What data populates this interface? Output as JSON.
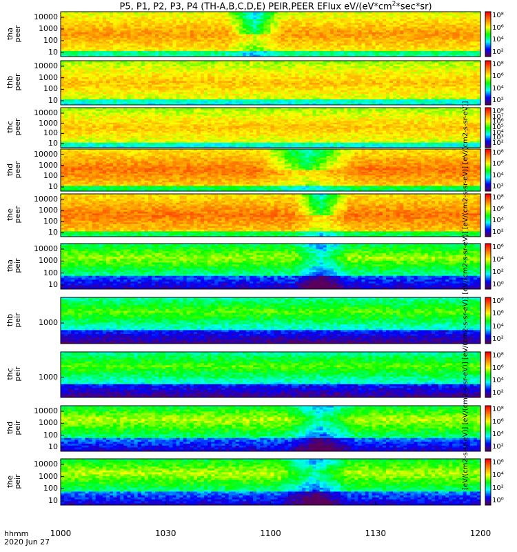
{
  "figure": {
    "title_main": "P5, P1, P2, P3, P4 (TH-A,B,C,D,E) PEIR,PEER EFlux eV/(eV*cm",
    "title_sup": "2",
    "title_tail": "*sec*sr)",
    "xaxis_name": "hhmm",
    "date": "2020 Jun 27",
    "units_label": "[eV/(cm2-s-sr-eV)] [eV/(cm2-s-sr-eV)] [eV/(cm2-s-sr-eV)] [eV/(cm2-s-sr-eV)] [eV/(cm2-s-sr-eV)] [eV/(cm2-s-sr-eV)]"
  },
  "chart_data": {
    "type": "heatmap",
    "x_ticks": [
      "1000",
      "1030",
      "1100",
      "1130",
      "1200"
    ],
    "x_range_minutes": [
      0,
      120
    ],
    "colormap": [
      "#5a005a",
      "#0000ff",
      "#00ffff",
      "#00ff00",
      "#ffff00",
      "#ff8000",
      "#ff0000"
    ],
    "panels": [
      {
        "id": "tha-peer",
        "name": "tha",
        "sub": "peer",
        "ylog": true,
        "ylim": [
          5,
          30000
        ],
        "yticks": [
          "10",
          "100",
          "1000",
          "10000"
        ],
        "cbar_ticks": [
          "10²",
          "10⁴",
          "10⁶",
          "10⁸"
        ],
        "base": 0.8,
        "dip_center": 55,
        "dip_width": 8
      },
      {
        "id": "thb-peer",
        "name": "thb",
        "sub": "peer",
        "ylog": true,
        "ylim": [
          5,
          30000
        ],
        "yticks": [
          "10",
          "100",
          "1000",
          "10000"
        ],
        "cbar_ticks": [
          "10²",
          "10⁴",
          "10⁶",
          "10⁸"
        ],
        "base": 0.75,
        "dip_center": -1,
        "dip_width": 0
      },
      {
        "id": "thc-peer",
        "name": "thc",
        "sub": "peer",
        "ylog": true,
        "ylim": [
          5,
          30000
        ],
        "yticks": [
          "10",
          "100",
          "1000",
          "10000"
        ],
        "cbar_ticks": [
          "10²",
          "10³",
          "10⁴",
          "10⁵",
          "10⁶",
          "10⁷",
          "10⁸"
        ],
        "base": 0.75,
        "dip_center": -1,
        "dip_width": 0
      },
      {
        "id": "thd-peer",
        "name": "thd",
        "sub": "peer",
        "ylog": true,
        "ylim": [
          5,
          30000
        ],
        "yticks": [
          "10",
          "100",
          "1000",
          "10000"
        ],
        "cbar_ticks": [
          "10²",
          "10⁴",
          "10⁶",
          "10⁸"
        ],
        "base": 0.85,
        "dip_center": 70,
        "dip_width": 14
      },
      {
        "id": "the-peer",
        "name": "the",
        "sub": "peer",
        "ylog": true,
        "ylim": [
          5,
          30000
        ],
        "yticks": [
          "10",
          "100",
          "1000",
          "10000"
        ],
        "cbar_ticks": [
          "10²",
          "10⁴",
          "10⁶",
          "10⁸"
        ],
        "base": 0.85,
        "dip_center": 74,
        "dip_width": 8
      },
      {
        "id": "tha-peir",
        "name": "tha",
        "sub": "peir",
        "ylog": true,
        "ylim": [
          5,
          30000
        ],
        "yticks": [
          "10",
          "100",
          "1000",
          "10000"
        ],
        "cbar_ticks": [
          "10⁰",
          "10²",
          "10⁴",
          "10⁶"
        ],
        "base": 0.6,
        "dip_center": 74,
        "dip_width": 8
      },
      {
        "id": "thb-peir",
        "name": "thb",
        "sub": "peir",
        "ylog": true,
        "ylim": [
          5,
          30000
        ],
        "yticks": [
          "1000"
        ],
        "cbar_ticks": [
          "10²",
          "10⁴",
          "10⁶",
          "10⁸"
        ],
        "base": 0.55,
        "dip_center": -1,
        "dip_width": 0
      },
      {
        "id": "thc-peir",
        "name": "thc",
        "sub": "peir",
        "ylog": true,
        "ylim": [
          5,
          30000
        ],
        "yticks": [
          "1000"
        ],
        "cbar_ticks": [
          "10²",
          "10⁴",
          "10⁶",
          "10⁸"
        ],
        "base": 0.55,
        "dip_center": -1,
        "dip_width": 0
      },
      {
        "id": "thd-peir",
        "name": "thd",
        "sub": "peir",
        "ylog": true,
        "ylim": [
          5,
          30000
        ],
        "yticks": [
          "10",
          "100",
          "1000",
          "10000"
        ],
        "cbar_ticks": [
          "10²",
          "10⁴",
          "10⁶",
          "10⁸"
        ],
        "base": 0.62,
        "dip_center": 74,
        "dip_width": 10
      },
      {
        "id": "the-peir",
        "name": "the",
        "sub": "peir",
        "ylog": true,
        "ylim": [
          5,
          30000
        ],
        "yticks": [
          "10",
          "100",
          "1000",
          "10000"
        ],
        "cbar_ticks": [
          "10⁰",
          "10²",
          "10⁴",
          "10⁶"
        ],
        "base": 0.62,
        "dip_center": 72,
        "dip_width": 10
      }
    ]
  }
}
